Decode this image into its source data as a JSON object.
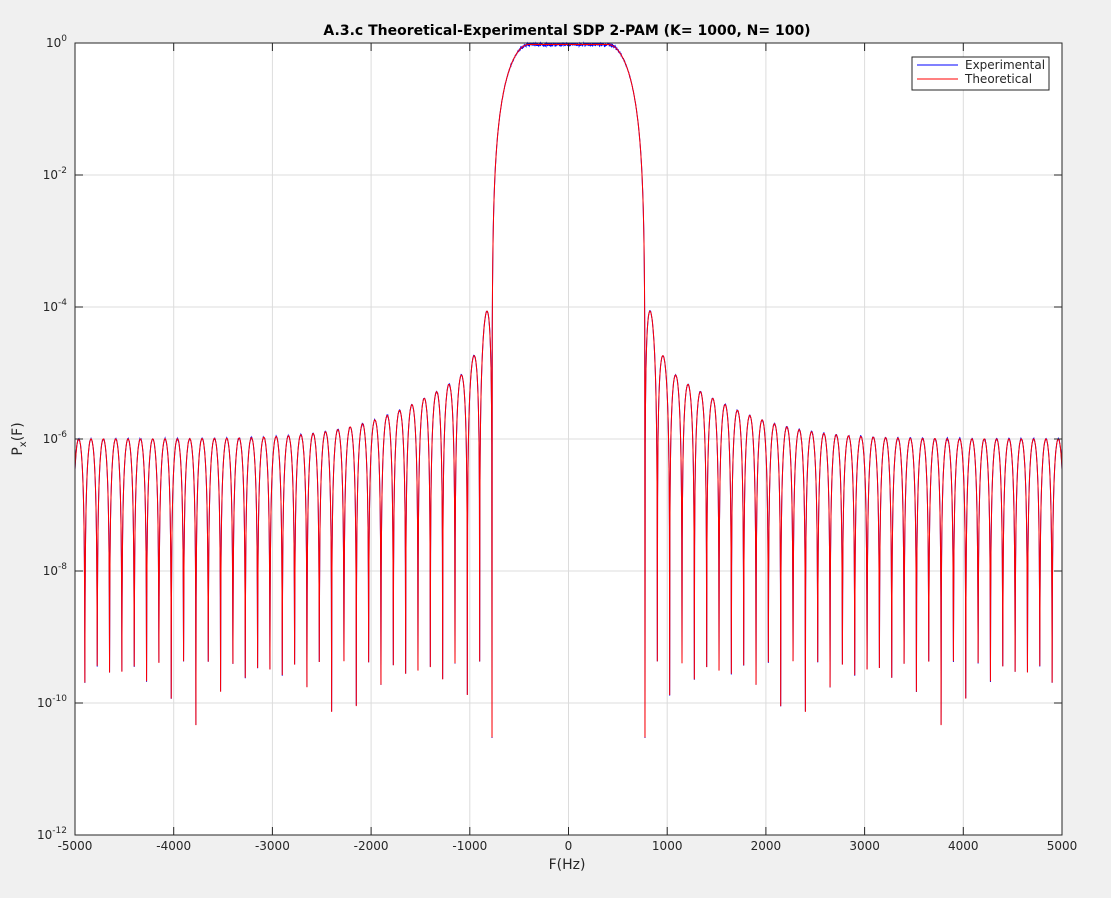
{
  "figure": {
    "background_color": "#f0f0f0",
    "axes_color": "#ffffff",
    "grid_color": "#dcdcdc"
  },
  "chart_data": {
    "type": "line",
    "title": "A.3.c Theoretical-Experimental SDP 2-PAM (K= 1000, N= 100)",
    "xlabel": "F(Hz)",
    "ylabel": {
      "base": "P",
      "subscript": "x",
      "suffix": "(F)"
    },
    "xlim": [
      -5000,
      5000
    ],
    "ylim": [
      1e-12,
      1
    ],
    "yscale": "log",
    "grid": true,
    "legend_location": "top-right",
    "x_ticks": [
      -5000,
      -4000,
      -3000,
      -2000,
      -1000,
      0,
      1000,
      2000,
      3000,
      4000,
      5000
    ],
    "x_tick_labels": [
      "-5000",
      "-4000",
      "-3000",
      "-2000",
      "-1000",
      "0",
      "1000",
      "2000",
      "3000",
      "4000",
      "5000"
    ],
    "y_ticks": [
      {
        "value": 1,
        "base": "10",
        "exp": "0"
      },
      {
        "value": 0.01,
        "base": "10",
        "exp": "-2"
      },
      {
        "value": 0.0001,
        "base": "10",
        "exp": "-4"
      },
      {
        "value": 1e-06,
        "base": "10",
        "exp": "-6"
      },
      {
        "value": 1e-08,
        "base": "10",
        "exp": "-8"
      },
      {
        "value": 1e-10,
        "base": "10",
        "exp": "-10"
      },
      {
        "value": 1e-12,
        "base": "10",
        "exp": "-12"
      }
    ],
    "series": [
      {
        "name": "Experimental",
        "color": "#0000ff"
      },
      {
        "name": "Theoretical",
        "color": "#ff0000"
      }
    ],
    "shape": {
      "description_values_in_data_units": true,
      "passband_plateau_hz": [
        -500,
        500
      ],
      "passband_level": 0.95,
      "transition_edge_hz": 775,
      "first_sidelobe_peak": {
        "x": 825,
        "y": 0.0002
      },
      "far_sidelobe_level": 1e-06,
      "sidelobe_spacing_hz": 125,
      "null_depth_range": [
        1e-11,
        3e-07
      ]
    }
  }
}
